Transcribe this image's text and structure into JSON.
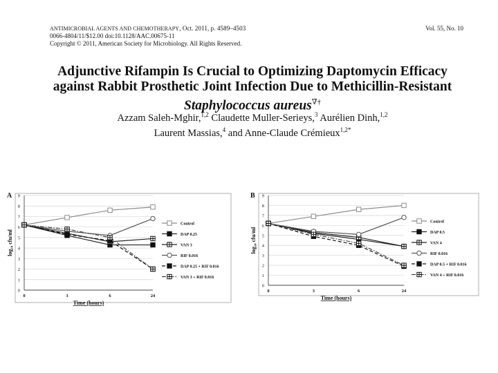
{
  "header": {
    "journal_name": "Antimicrobial Agents and Chemotherapy",
    "journal_date": ", Oct. 2011, p. 4589–4503",
    "issn_line": "0066-4804/11/$12.00    doi:10.1128/AAC.00675-11",
    "copyright": "Copyright © 2011, American Society for Microbiology. All Rights Reserved.",
    "volume": "Vol. 55, No. 10"
  },
  "article": {
    "title_line1": "Adjunctive Rifampin Is Crucial to Optimizing Daptomycin Efficacy",
    "title_line2": "against Rabbit Prosthetic Joint Infection Due to Methicillin-Resistant",
    "title_line3": "Staphylococcus aureus",
    "title_marks": "∇†",
    "authors_line1": [
      {
        "name": "Azzam Saleh-Mghir,",
        "sup": "1,2"
      },
      {
        "name": " Claudette Muller-Serieys,",
        "sup": "3"
      },
      {
        "name": " Aurélien Dinh,",
        "sup": "1,2"
      }
    ],
    "authors_line2": [
      {
        "name": "Laurent Massias,",
        "sup": "4"
      },
      {
        "name": " and Anne-Claude Crémieux",
        "sup": "1,2*"
      }
    ]
  },
  "chart_data": [
    {
      "type": "line",
      "panel_label": "A",
      "xlabel": "Time (hours)",
      "ylabel": "log₁₀ cfu/ml",
      "x_ticks": [
        "0",
        "3",
        "6",
        "24"
      ],
      "ylim": [
        0,
        9
      ],
      "y_ticks": [
        "0",
        "1",
        "2",
        "3",
        "4",
        "5",
        "6",
        "7",
        "8",
        "9"
      ],
      "grid": true,
      "legend_position": "right",
      "series": [
        {
          "name": "Control",
          "values": [
            6.2,
            6.9,
            7.6,
            7.9
          ],
          "marker": "square-open",
          "dash": "solid",
          "color": "#8a8a8a"
        },
        {
          "name": "DAP 0.25",
          "values": [
            6.2,
            5.2,
            4.3,
            4.3
          ],
          "marker": "square-filled",
          "dash": "solid",
          "color": "#222222"
        },
        {
          "name": "VAN 3",
          "values": [
            6.2,
            5.4,
            4.6,
            4.9
          ],
          "marker": "square-cross",
          "dash": "solid",
          "color": "#222222"
        },
        {
          "name": "RIF 0.016",
          "values": [
            6.2,
            5.6,
            5.2,
            6.8
          ],
          "marker": "circle-open",
          "dash": "solid",
          "color": "#555555"
        },
        {
          "name": "DAP 0.25 + RIF 0.016",
          "values": [
            6.2,
            5.3,
            4.7,
            2.0
          ],
          "marker": "square-filled",
          "dash": "dashed",
          "color": "#111111"
        },
        {
          "name": "VAN 3 + RIF 0.016",
          "values": [
            6.2,
            5.8,
            5.0,
            2.0
          ],
          "marker": "square-cross",
          "dash": "dashdot",
          "color": "#444444"
        }
      ]
    },
    {
      "type": "line",
      "panel_label": "B",
      "xlabel": "Time (hours)",
      "ylabel": "log₁₀ cfu/ml",
      "x_ticks": [
        "0",
        "3",
        "6",
        "24"
      ],
      "ylim": [
        0,
        9
      ],
      "y_ticks": [
        "0",
        "1",
        "2",
        "3",
        "4",
        "5",
        "6",
        "7",
        "8",
        "9"
      ],
      "grid": true,
      "legend_position": "right",
      "series": [
        {
          "name": "Control",
          "values": [
            6.2,
            6.9,
            7.6,
            8.0
          ],
          "marker": "square-open",
          "dash": "solid",
          "color": "#8a8a8a"
        },
        {
          "name": "DAP 0.5",
          "values": [
            6.2,
            5.2,
            4.6,
            3.9
          ],
          "marker": "square-filled",
          "dash": "solid",
          "color": "#222222"
        },
        {
          "name": "VAN 4",
          "values": [
            6.2,
            5.3,
            4.8,
            3.9
          ],
          "marker": "square-cross",
          "dash": "solid",
          "color": "#222222"
        },
        {
          "name": "RIF 0.016",
          "values": [
            6.2,
            5.4,
            5.1,
            6.8
          ],
          "marker": "circle-open",
          "dash": "solid",
          "color": "#555555"
        },
        {
          "name": "DAP 0.5 + RIF 0.016",
          "values": [
            6.2,
            4.9,
            4.0,
            1.9
          ],
          "marker": "square-filled",
          "dash": "dashed",
          "color": "#111111"
        },
        {
          "name": "VAN 4 + RIF 0.016",
          "values": [
            6.2,
            5.1,
            4.2,
            2.0
          ],
          "marker": "square-cross",
          "dash": "dashdot",
          "color": "#444444"
        }
      ]
    }
  ]
}
